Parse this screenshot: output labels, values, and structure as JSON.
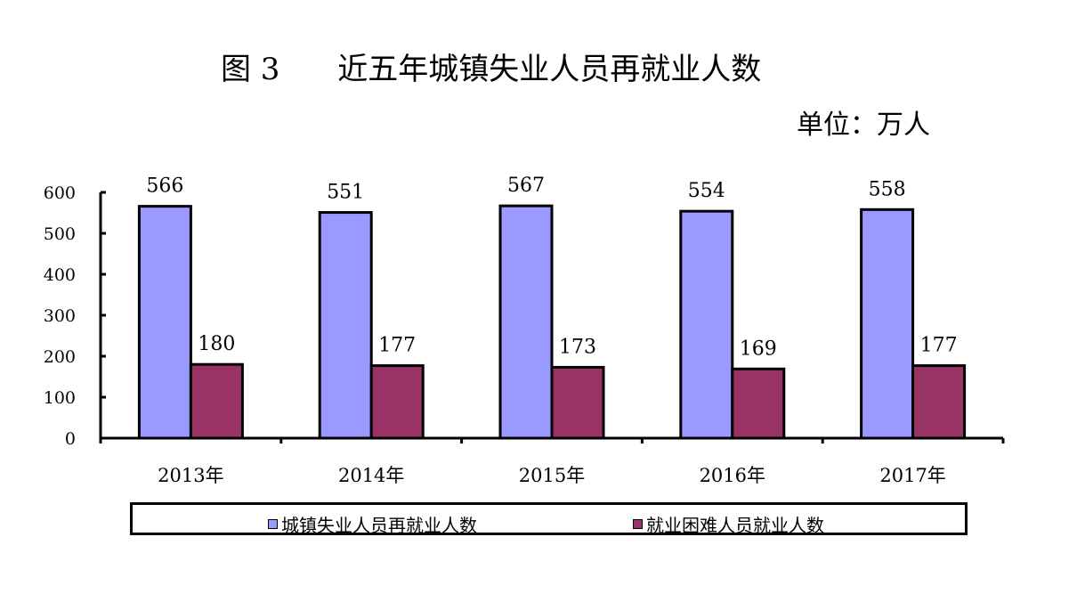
{
  "title": "图 3      近五年城镇失业人员再就业人数",
  "unit": "单位：万人",
  "colors": {
    "series1": "#9999ff",
    "series2": "#993366"
  },
  "chart_data": {
    "type": "bar",
    "categories": [
      "2013年",
      "2014年",
      "2015年",
      "2016年",
      "2017年"
    ],
    "series": [
      {
        "name": "城镇失业人员再就业人数",
        "values": [
          566,
          551,
          567,
          554,
          558
        ]
      },
      {
        "name": "就业困难人员就业人数",
        "values": [
          180,
          177,
          173,
          169,
          177
        ]
      }
    ],
    "ylim": [
      0,
      600
    ],
    "yticks": [
      "0",
      "100",
      "200",
      "300",
      "400",
      "500",
      "600"
    ],
    "legend": "bottom",
    "grid": false
  }
}
